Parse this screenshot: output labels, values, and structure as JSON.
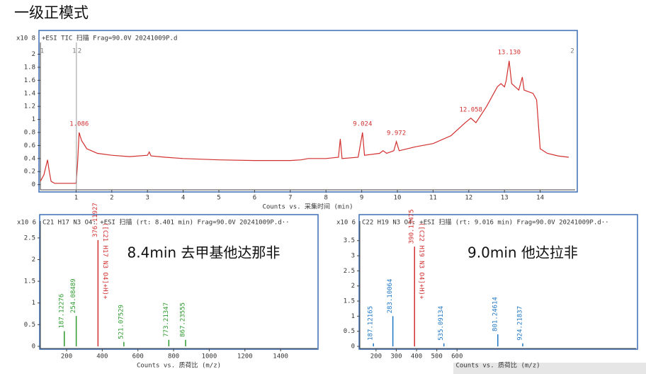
{
  "page_title": "一级正模式",
  "chart_data": [
    {
      "type": "line",
      "title": "+ESI TIC 扫描 Frag=90.0V 20241009P.d",
      "y_multiplier": "x10 8",
      "x_label": "Counts vs. 采集时间 (min)",
      "color": "#d22f2f",
      "x": [
        0,
        0.1,
        0.2,
        0.25,
        0.3,
        0.4,
        1.0,
        1.04,
        1.086,
        1.15,
        1.3,
        1.6,
        2.0,
        2.5,
        3.0,
        3.05,
        3.1,
        3.5,
        4.0,
        5.0,
        6.0,
        7.0,
        7.3,
        7.5,
        8.0,
        8.35,
        8.4,
        8.45,
        8.9,
        9.024,
        9.08,
        9.5,
        9.6,
        9.7,
        9.9,
        9.972,
        10.05,
        10.5,
        11.0,
        11.5,
        11.9,
        12.058,
        12.2,
        12.5,
        12.8,
        12.9,
        13.0,
        13.05,
        13.13,
        13.2,
        13.4,
        13.5,
        13.55,
        13.8,
        13.9,
        14.0,
        14.2,
        14.5,
        14.8
      ],
      "values": [
        0.05,
        0.15,
        0.38,
        0.2,
        0.05,
        0.02,
        0.02,
        0.3,
        0.8,
        0.68,
        0.55,
        0.48,
        0.45,
        0.43,
        0.45,
        0.5,
        0.44,
        0.42,
        0.4,
        0.38,
        0.37,
        0.37,
        0.38,
        0.4,
        0.4,
        0.42,
        0.7,
        0.4,
        0.42,
        0.8,
        0.45,
        0.48,
        0.52,
        0.48,
        0.52,
        0.66,
        0.52,
        0.58,
        0.63,
        0.75,
        0.95,
        1.02,
        0.95,
        1.2,
        1.5,
        1.55,
        1.5,
        1.6,
        1.9,
        1.55,
        1.45,
        1.65,
        1.45,
        1.4,
        1.3,
        0.55,
        0.48,
        0.44,
        0.42
      ],
      "annotations": [
        {
          "x": 1.086,
          "y": 0.8,
          "label": "1.086"
        },
        {
          "x": 9.024,
          "y": 0.8,
          "label": "9.024"
        },
        {
          "x": 9.972,
          "y": 0.66,
          "label": "9.972"
        },
        {
          "x": 12.058,
          "y": 1.02,
          "label": "12.058"
        },
        {
          "x": 13.13,
          "y": 1.9,
          "label": "13.130"
        }
      ],
      "markers": [
        {
          "x": 0.05,
          "label": "1"
        },
        {
          "x": 0.95,
          "label": "1"
        },
        {
          "x": 1.1,
          "label": "2"
        },
        {
          "x": 14.9,
          "label": "2"
        }
      ],
      "xlim": [
        0,
        14.98
      ],
      "ylim": [
        -0.08,
        2.18
      ],
      "xticks": [
        1,
        2,
        3,
        4,
        5,
        6,
        7,
        8,
        9,
        10,
        11,
        12,
        13,
        14
      ],
      "yticks": [
        0,
        0.2,
        0.4,
        0.6,
        0.8,
        1,
        1.2,
        1.4,
        1.6,
        1.8,
        2
      ]
    },
    {
      "type": "stem",
      "title": "C21 H17 N3 O4: +ESI 扫描 (rt: 8.401 min) Frag=90.0V 20241009P.d··",
      "y_multiplier": "x10 6",
      "x_label": "Counts vs. 质荷比 (m/z)",
      "overlay": "8.4min 去甲基他达那非",
      "formula_label": "([C21 H17 N3 O4]+H)+",
      "x": [
        187.12276,
        254.08489,
        376.11927,
        521.07529,
        773.21347,
        867.23555
      ],
      "values": [
        0.35,
        0.7,
        2.45,
        0.1,
        0.15,
        0.15
      ],
      "colors": [
        "#2e9a2e",
        "#2e9a2e",
        "#d22f2f",
        "#2e9a2e",
        "#2e9a2e",
        "#2e9a2e"
      ],
      "xlim": [
        53,
        1606
      ],
      "ylim": [
        -0.05,
        2.89
      ],
      "xticks": [
        200,
        400,
        600,
        800,
        1000,
        1200,
        1400
      ],
      "yticks": [
        0,
        0.5,
        1,
        1.5,
        2,
        2.5
      ]
    },
    {
      "type": "stem",
      "title": "C22 H19 N3 O4: +ESI 扫描 (rt: 9.016 min) Frag=90.0V 20241009P.d··",
      "y_multiplier": "x10 6",
      "x_label": "Counts vs. 质荷比 (m/z)",
      "overlay": "9.0min 他达拉非",
      "formula_label": "([C22 H19 N3 O4]+H)+",
      "x": [
        187.12165,
        283.10064,
        390.13475,
        535.09134,
        801.24614,
        924.21837
      ],
      "values": [
        0.1,
        1.0,
        3.3,
        0.1,
        0.4,
        0.1
      ],
      "colors": [
        "#1f77c4",
        "#1f77c4",
        "#d22f2f",
        "#1f77c4",
        "#1f77c4",
        "#1f77c4"
      ],
      "xlim": [
        120,
        1484
      ],
      "ylim": [
        -0.07,
        4.15
      ],
      "xticks": [
        200,
        300,
        400,
        500,
        600
      ],
      "yticks": [
        0,
        0.5,
        1,
        1.5,
        2,
        2.5,
        3,
        3.5
      ]
    }
  ]
}
